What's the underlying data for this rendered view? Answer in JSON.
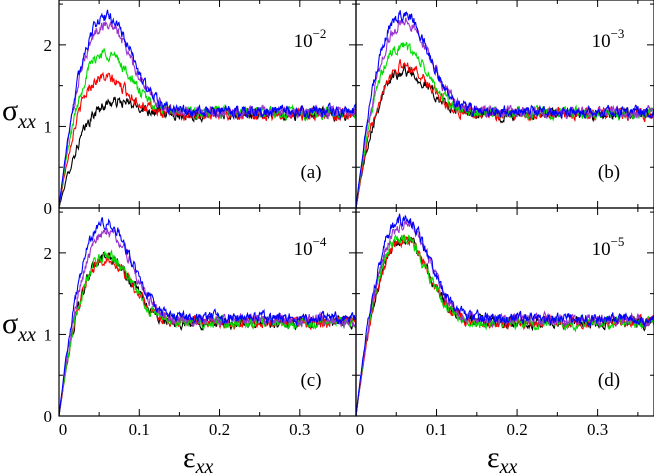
{
  "chart_data": {
    "type": "line",
    "title": "",
    "xlabel": "ε",
    "xlabel_sub": "xx",
    "ylabel": "σ",
    "ylabel_sub": "xx",
    "xlim": [
      0,
      0.37
    ],
    "ylim": [
      0,
      2.55
    ],
    "x_ticks": [
      0,
      0.1,
      0.2,
      0.3
    ],
    "x_tick_labels": [
      "0",
      "0.1",
      "0.2",
      "0.3"
    ],
    "y_ticks": [
      0,
      1,
      2
    ],
    "y_tick_labels": [
      "0",
      "1",
      "2"
    ],
    "grid": false,
    "series_colors": [
      "#000000",
      "#ff0000",
      "#00dd00",
      "#9933cc",
      "#0000ff"
    ],
    "panels": [
      {
        "label": "(a)",
        "rate_base": "10",
        "rate_exp": "−2",
        "series": [
          {
            "name": "black",
            "peak_x": 0.07,
            "peak_y": 1.3,
            "plateau": 1.15
          },
          {
            "name": "red",
            "peak_x": 0.055,
            "peak_y": 1.6,
            "plateau": 1.15
          },
          {
            "name": "green",
            "peak_x": 0.058,
            "peak_y": 1.9,
            "plateau": 1.17
          },
          {
            "name": "purple",
            "peak_x": 0.06,
            "peak_y": 2.25,
            "plateau": 1.18
          },
          {
            "name": "blue",
            "peak_x": 0.06,
            "peak_y": 2.35,
            "plateau": 1.18
          }
        ]
      },
      {
        "label": "(b)",
        "rate_base": "10",
        "rate_exp": "−3",
        "series": [
          {
            "name": "black",
            "peak_x": 0.06,
            "peak_y": 1.68,
            "plateau": 1.15
          },
          {
            "name": "red",
            "peak_x": 0.06,
            "peak_y": 1.75,
            "plateau": 1.15
          },
          {
            "name": "green",
            "peak_x": 0.058,
            "peak_y": 1.98,
            "plateau": 1.16
          },
          {
            "name": "purple",
            "peak_x": 0.062,
            "peak_y": 2.28,
            "plateau": 1.18
          },
          {
            "name": "blue",
            "peak_x": 0.06,
            "peak_y": 2.38,
            "plateau": 1.18
          }
        ]
      },
      {
        "label": "(c)",
        "rate_base": "10",
        "rate_exp": "−4",
        "series": [
          {
            "name": "black",
            "peak_x": 0.06,
            "peak_y": 1.95,
            "plateau": 1.15
          },
          {
            "name": "red",
            "peak_x": 0.06,
            "peak_y": 1.93,
            "plateau": 1.15
          },
          {
            "name": "green",
            "peak_x": 0.06,
            "peak_y": 1.97,
            "plateau": 1.15
          },
          {
            "name": "purple",
            "peak_x": 0.062,
            "peak_y": 2.25,
            "plateau": 1.18
          },
          {
            "name": "blue",
            "peak_x": 0.06,
            "peak_y": 2.38,
            "plateau": 1.2
          }
        ]
      },
      {
        "label": "(d)",
        "rate_base": "10",
        "rate_exp": "−5",
        "series": [
          {
            "name": "black",
            "peak_x": 0.06,
            "peak_y": 2.15,
            "plateau": 1.15
          },
          {
            "name": "red",
            "peak_x": 0.06,
            "peak_y": 2.15,
            "plateau": 1.15
          },
          {
            "name": "green",
            "peak_x": 0.058,
            "peak_y": 2.18,
            "plateau": 1.15
          },
          {
            "name": "purple",
            "peak_x": 0.062,
            "peak_y": 2.35,
            "plateau": 1.18
          },
          {
            "name": "blue",
            "peak_x": 0.06,
            "peak_y": 2.42,
            "plateau": 1.2
          }
        ]
      }
    ]
  }
}
